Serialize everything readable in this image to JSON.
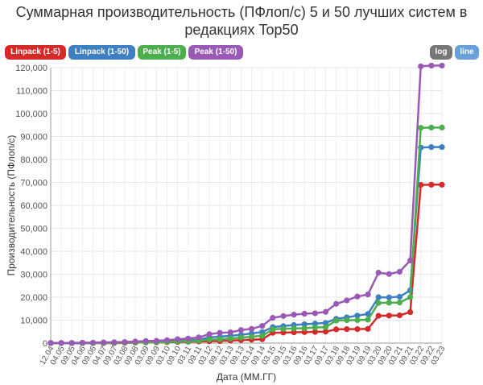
{
  "title_line1": "Суммарная производительность (ПФлоп/с) 5 и 50 лучших систем в",
  "title_line2": "редакциях Top50",
  "buttons": {
    "linpack5": "Linpack (1-5)",
    "linpack50": "Linpack (1-50)",
    "peak5": "Peak (1-5)",
    "peak50": "Peak (1-50)",
    "log": "log",
    "line": "line"
  },
  "colors": {
    "linpack5": "#d62a2a",
    "linpack50": "#3d7fc1",
    "peak5": "#4cae4c",
    "peak50": "#9b59b6",
    "log": "#777777",
    "line": "#6aa0d8"
  },
  "chart_data": {
    "type": "line",
    "xlabel": "Дата (ММ.ГГ)",
    "ylabel": "Производительность (ПФлоп/с)",
    "ylim": [
      0,
      120000
    ],
    "yticks": [
      0,
      10000,
      20000,
      30000,
      40000,
      50000,
      60000,
      70000,
      80000,
      90000,
      100000,
      110000,
      120000
    ],
    "ytick_labels": [
      "0",
      "10,000",
      "20,000",
      "30,000",
      "40,000",
      "50,000",
      "60,000",
      "70,000",
      "80,000",
      "90,000",
      "100,000",
      "110,000",
      "120,000"
    ],
    "grid": true,
    "categories": [
      "12.04",
      "04.05",
      "09.05",
      "04.06",
      "09.06",
      "04.07",
      "09.07",
      "03.08",
      "09.08",
      "03.09",
      "09.09",
      "03.10",
      "09.10",
      "03.11",
      "09.11",
      "03.12",
      "09.12",
      "03.13",
      "09.13",
      "03.14",
      "09.14",
      "03.15",
      "09.15",
      "03.16",
      "09.16",
      "03.17",
      "09.17",
      "03.18",
      "09.18",
      "03.19",
      "09.19",
      "03.20",
      "09.20",
      "03.21",
      "09.21",
      "03.22",
      "09.22",
      "03.23"
    ],
    "series": [
      {
        "name": "Linpack (1-5)",
        "color": "#d62a2a",
        "values": [
          0,
          0,
          0,
          0,
          0,
          0,
          0,
          100,
          200,
          300,
          300,
          400,
          500,
          600,
          700,
          800,
          900,
          1100,
          1300,
          1500,
          1700,
          4500,
          4600,
          4700,
          4800,
          4900,
          5000,
          6000,
          6100,
          6100,
          6200,
          11900,
          12000,
          12100,
          13500,
          68900,
          69000,
          69000
        ]
      },
      {
        "name": "Linpack (1-50)",
        "color": "#3d7fc1",
        "values": [
          0,
          0,
          0,
          0,
          100,
          100,
          200,
          300,
          400,
          500,
          600,
          900,
          1100,
          1200,
          1500,
          2500,
          2800,
          3200,
          3600,
          4200,
          4800,
          7000,
          7400,
          7900,
          8200,
          8500,
          8800,
          10600,
          11200,
          12000,
          12700,
          20000,
          19900,
          20200,
          23000,
          85200,
          85400,
          85400
        ]
      },
      {
        "name": "Peak (1-5)",
        "color": "#4cae4c",
        "values": [
          0,
          0,
          0,
          0,
          0,
          100,
          100,
          200,
          300,
          300,
          400,
          500,
          700,
          800,
          1000,
          1500,
          1700,
          2000,
          2400,
          2800,
          3200,
          6000,
          6200,
          6400,
          6500,
          6800,
          7000,
          9800,
          10000,
          10000,
          10200,
          17500,
          17600,
          17700,
          20000,
          93800,
          93900,
          93900
        ]
      },
      {
        "name": "Peak (1-50)",
        "color": "#9b59b6",
        "values": [
          100,
          100,
          100,
          200,
          200,
          300,
          400,
          500,
          700,
          900,
          1000,
          1300,
          1700,
          2000,
          2500,
          3900,
          4500,
          4700,
          5700,
          6200,
          7500,
          11000,
          11800,
          12400,
          12800,
          13000,
          13600,
          17100,
          18600,
          20300,
          21200,
          30700,
          30100,
          31100,
          36000,
          120600,
          120900,
          120900
        ]
      }
    ]
  }
}
